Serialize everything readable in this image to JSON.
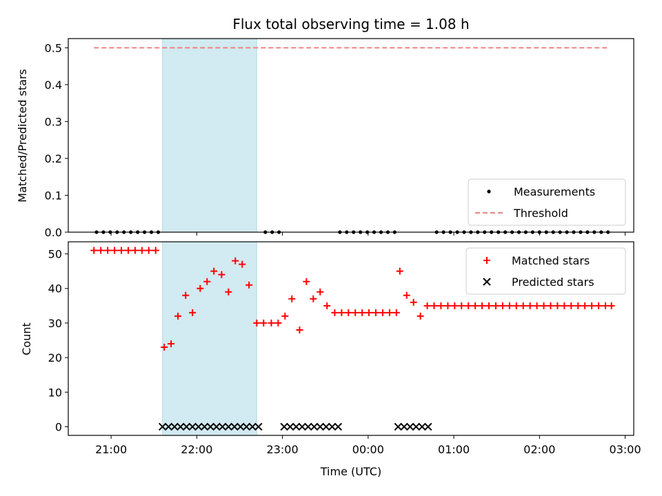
{
  "chart_data": {
    "title": "Flux total observing time = 1.08 h",
    "type": "scatter",
    "xlabel": "Time (UTC)",
    "x_ticks": [
      "21:00",
      "22:00",
      "23:00",
      "00:00",
      "01:00",
      "02:00",
      "03:00"
    ],
    "x_range_hours": [
      20.5,
      27.1
    ],
    "shaded_region_hours": [
      21.6,
      22.7
    ],
    "shade_color": "#add8e6",
    "panels": [
      {
        "name": "ratio",
        "ylabel": "Matched/Predicted stars",
        "ylim": [
          0,
          0.525
        ],
        "y_ticks": [
          0.0,
          0.1,
          0.2,
          0.3,
          0.4,
          0.5
        ],
        "threshold": 0.5,
        "threshold_range_hours": [
          20.8,
          26.8
        ],
        "threshold_color": "#f08080",
        "legend": [
          "Measurements",
          "Threshold"
        ],
        "legend_position": "lower right",
        "series": [
          {
            "name": "Measurements",
            "marker": "dot",
            "color": "#000000",
            "x_hours": [
              20.83,
              20.91,
              20.99,
              21.07,
              21.15,
              21.23,
              21.31,
              21.39,
              21.47,
              21.55,
              22.8,
              22.88,
              22.96,
              23.67,
              23.75,
              23.83,
              23.91,
              23.99,
              24.07,
              24.15,
              24.23,
              24.31,
              24.8,
              24.88,
              24.96,
              25.04,
              25.12,
              25.2,
              25.28,
              25.36,
              25.44,
              25.52,
              25.6,
              25.68,
              25.76,
              25.84,
              25.92,
              26.0,
              26.08,
              26.16,
              26.24,
              26.32,
              26.4,
              26.48,
              26.56,
              26.64,
              26.72,
              26.8
            ],
            "y": [
              0,
              0,
              0,
              0,
              0,
              0,
              0,
              0,
              0,
              0,
              0,
              0,
              0,
              0,
              0,
              0,
              0,
              0,
              0,
              0,
              0,
              0,
              0,
              0,
              0,
              0,
              0,
              0,
              0,
              0,
              0,
              0,
              0,
              0,
              0,
              0,
              0,
              0,
              0,
              0,
              0,
              0,
              0,
              0,
              0,
              0,
              0,
              0
            ]
          }
        ]
      },
      {
        "name": "count",
        "ylabel": "Count",
        "ylim": [
          -2.5,
          53.5
        ],
        "y_ticks": [
          0,
          10,
          20,
          30,
          40,
          50
        ],
        "legend": [
          "Matched stars",
          "Predicted stars"
        ],
        "legend_position": "upper right",
        "series": [
          {
            "name": "Matched stars",
            "marker": "plus",
            "color": "#ff0000",
            "x_hours": [
              20.8,
              20.88,
              20.96,
              21.04,
              21.12,
              21.2,
              21.28,
              21.36,
              21.44,
              21.52,
              21.62,
              21.7,
              21.78,
              21.87,
              21.95,
              22.04,
              22.12,
              22.2,
              22.29,
              22.37,
              22.45,
              22.53,
              22.61,
              22.7,
              22.78,
              22.87,
              22.95,
              23.03,
              23.11,
              23.2,
              23.28,
              23.36,
              23.44,
              23.52,
              23.61,
              23.69,
              23.77,
              23.85,
              23.93,
              24.01,
              24.09,
              24.17,
              24.25,
              24.33,
              24.37,
              24.45,
              24.53,
              24.61,
              24.69,
              24.77,
              24.85,
              24.93,
              25.01,
              25.09,
              25.17,
              25.25,
              25.33,
              25.41,
              25.49,
              25.57,
              25.65,
              25.73,
              25.81,
              25.89,
              25.97,
              26.05,
              26.13,
              26.21,
              26.29,
              26.37,
              26.45,
              26.53,
              26.61,
              26.69,
              26.77,
              26.84
            ],
            "y": [
              51,
              51,
              51,
              51,
              51,
              51,
              51,
              51,
              51,
              51,
              23,
              24,
              32,
              38,
              33,
              40,
              42,
              45,
              44,
              39,
              48,
              47,
              41,
              30,
              30,
              30,
              30,
              32,
              37,
              28,
              42,
              37,
              39,
              35,
              33,
              33,
              33,
              33,
              33,
              33,
              33,
              33,
              33,
              33,
              45,
              38,
              36,
              32,
              35,
              35,
              35,
              35,
              35,
              35,
              35,
              35,
              35,
              35,
              35,
              35,
              35,
              35,
              35,
              35,
              35,
              35,
              35,
              35,
              35,
              35,
              35,
              35,
              35,
              35,
              35,
              35
            ]
          },
          {
            "name": "Predicted stars",
            "marker": "x",
            "color": "#000000",
            "x_hours": [
              21.6,
              21.67,
              21.74,
              21.81,
              21.88,
              21.95,
              22.02,
              22.09,
              22.16,
              22.23,
              22.3,
              22.37,
              22.44,
              22.51,
              22.58,
              22.65,
              22.72,
              23.02,
              23.09,
              23.16,
              23.23,
              23.3,
              23.37,
              23.44,
              23.51,
              23.58,
              23.65,
              24.35,
              24.42,
              24.49,
              24.56,
              24.63,
              24.7
            ],
            "y": [
              0,
              0,
              0,
              0,
              0,
              0,
              0,
              0,
              0,
              0,
              0,
              0,
              0,
              0,
              0,
              0,
              0,
              0,
              0,
              0,
              0,
              0,
              0,
              0,
              0,
              0,
              0,
              0,
              0,
              0,
              0,
              0,
              0
            ]
          }
        ]
      }
    ]
  }
}
